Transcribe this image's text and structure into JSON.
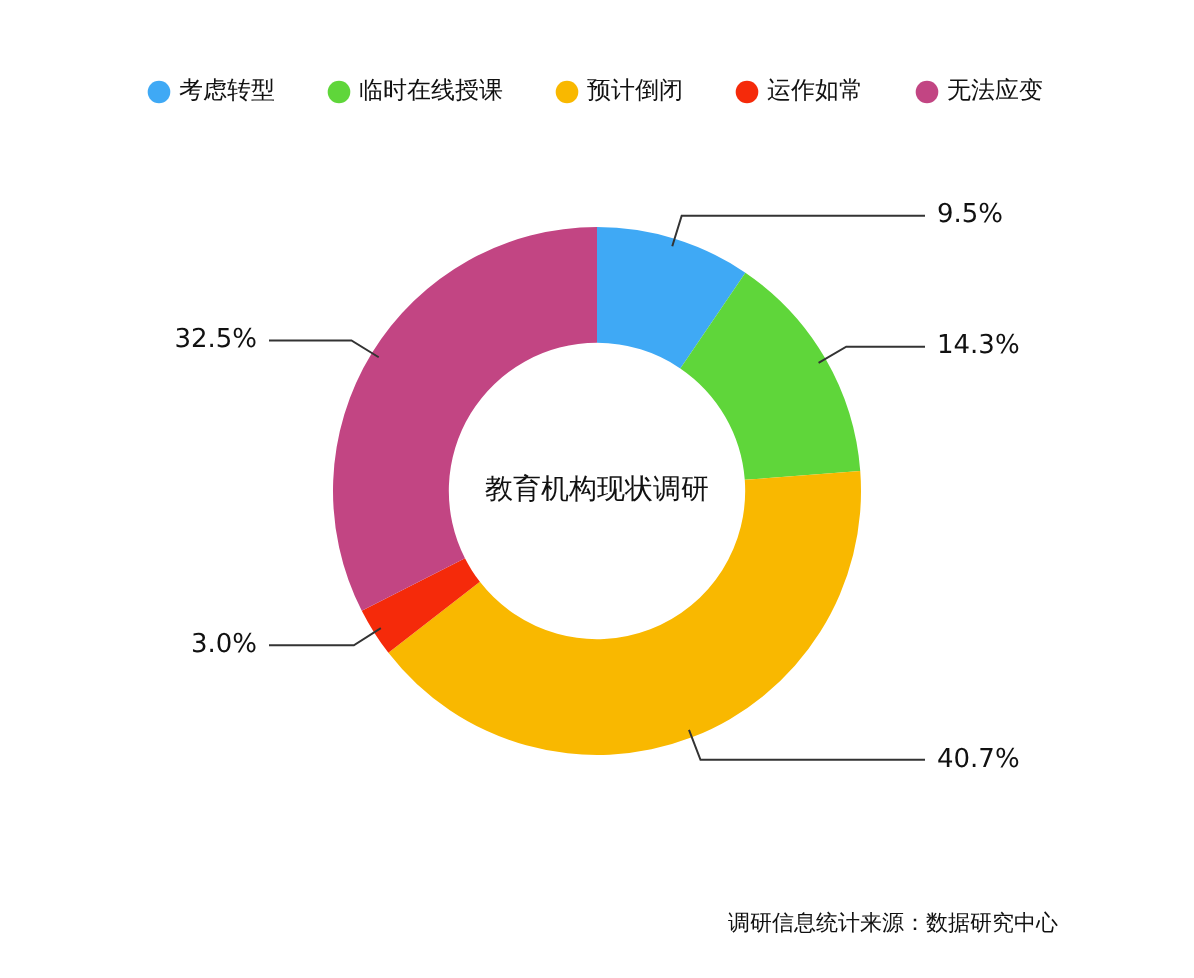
{
  "chart_data": {
    "type": "donut",
    "title": "教育机构现状调研",
    "categories": [
      "考虑转型",
      "临时在线授课",
      "预计倒闭",
      "运作如常",
      "无法应变"
    ],
    "values": [
      9.5,
      14.3,
      40.7,
      3.0,
      32.5
    ],
    "value_labels": [
      "9.5%",
      "14.3%",
      "40.7%",
      "3.0%",
      "32.5%"
    ],
    "colors": [
      "#3fa9f5",
      "#5fd63a",
      "#f9b800",
      "#f52a0a",
      "#c24583"
    ],
    "legend": "top",
    "annotations": [
      "调研信息统计来源：数据研究中心"
    ]
  }
}
